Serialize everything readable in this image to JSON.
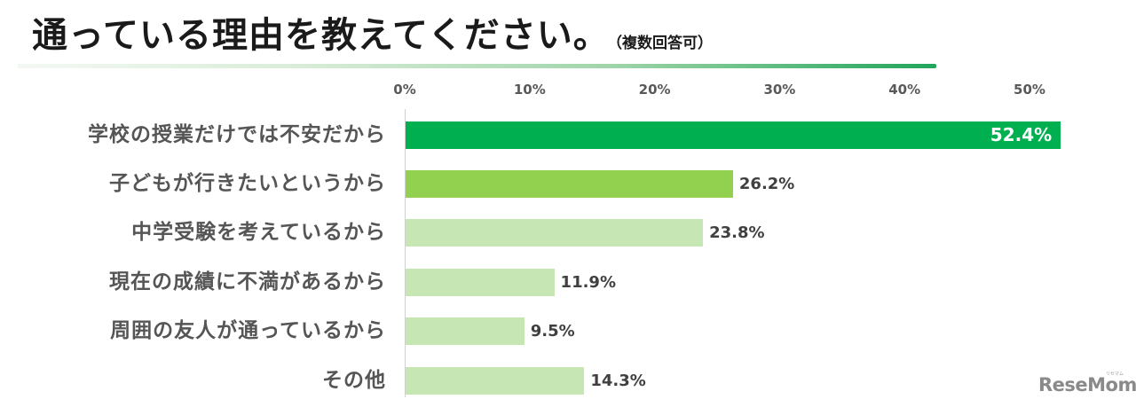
{
  "header": {
    "title": "通っている理由を教えてください。",
    "subtitle": "（複数回答可）"
  },
  "axis": {
    "ticks": [
      "0%",
      "10%",
      "20%",
      "30%",
      "40%",
      "50%"
    ]
  },
  "bars": [
    {
      "label": "学校の授業だけでは不安だから",
      "value": 52.4,
      "display": "52.4%",
      "color": "#00b050"
    },
    {
      "label": "子どもが行きたいというから",
      "value": 26.2,
      "display": "26.2%",
      "color": "#92d050"
    },
    {
      "label": "中学受験を考えているから",
      "value": 23.8,
      "display": "23.8%",
      "color": "#c6e6b4"
    },
    {
      "label": "現在の成績に不満があるから",
      "value": 11.9,
      "display": "11.9%",
      "color": "#c6e6b4"
    },
    {
      "label": "周囲の友人が通っているから",
      "value": 9.5,
      "display": "9.5%",
      "color": "#c6e6b4"
    },
    {
      "label": "その他",
      "value": 14.3,
      "display": "14.3%",
      "color": "#c6e6b4"
    }
  ],
  "watermark": {
    "text": "ReseMom",
    "ruby": "リセマム"
  },
  "chart_data": {
    "type": "bar",
    "orientation": "horizontal",
    "title": "通っている理由を教えてください。",
    "subtitle": "（複数回答可）",
    "categories": [
      "学校の授業だけでは不安だから",
      "子どもが行きたいというから",
      "中学受験を考えているから",
      "現在の成績に不満があるから",
      "周囲の友人が通っているから",
      "その他"
    ],
    "values": [
      52.4,
      26.2,
      23.8,
      11.9,
      9.5,
      14.3
    ],
    "unit": "%",
    "xlabel": "",
    "ylabel": "",
    "xlim": [
      0,
      50
    ],
    "x_ticks": [
      "0%",
      "10%",
      "20%",
      "30%",
      "40%",
      "50%"
    ],
    "axis_position": "top",
    "grid": false,
    "legend": null,
    "data_labels": [
      "52.4%",
      "26.2%",
      "23.8%",
      "11.9%",
      "9.5%",
      "14.3%"
    ],
    "bar_colors": [
      "#00b050",
      "#92d050",
      "#c6e6b4",
      "#c6e6b4",
      "#c6e6b4",
      "#c6e6b4"
    ]
  }
}
